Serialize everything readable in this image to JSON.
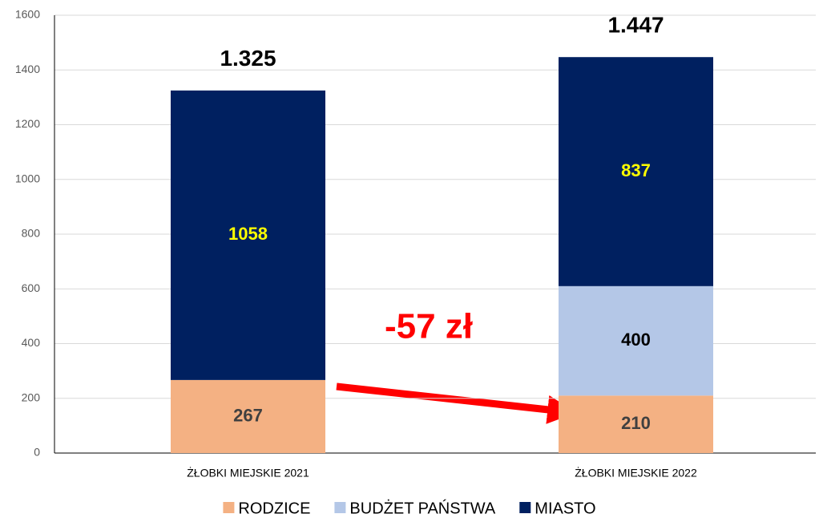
{
  "chart_data": {
    "type": "stacked_bar",
    "categories": [
      "ŻŁOBKI MIEJSKIE 2021",
      "ŻŁOBKI MIEJSKIE 2022"
    ],
    "series": [
      {
        "name": "RODZICE",
        "color": "#f4b183",
        "label_color": "#404040",
        "values": [
          267,
          210
        ]
      },
      {
        "name": "BUDŻET PAŃSTWA",
        "color": "#b4c7e7",
        "label_color": "#000000",
        "values": [
          null,
          400
        ]
      },
      {
        "name": "MIASTO",
        "color": "#002060",
        "label_color": "#ffff00",
        "values": [
          1058,
          837
        ]
      }
    ],
    "totals": {
      "values": [
        1325,
        1447
      ],
      "value_labels": [
        "1.325",
        "1.447"
      ]
    },
    "annotations": [
      {
        "text": "-57 zł",
        "color": "#ff0000"
      }
    ],
    "ylim": [
      0,
      1600
    ],
    "yticks": [
      0,
      200,
      400,
      600,
      800,
      1000,
      1200,
      1400,
      1600
    ],
    "grid": true,
    "legend": "bottom"
  }
}
